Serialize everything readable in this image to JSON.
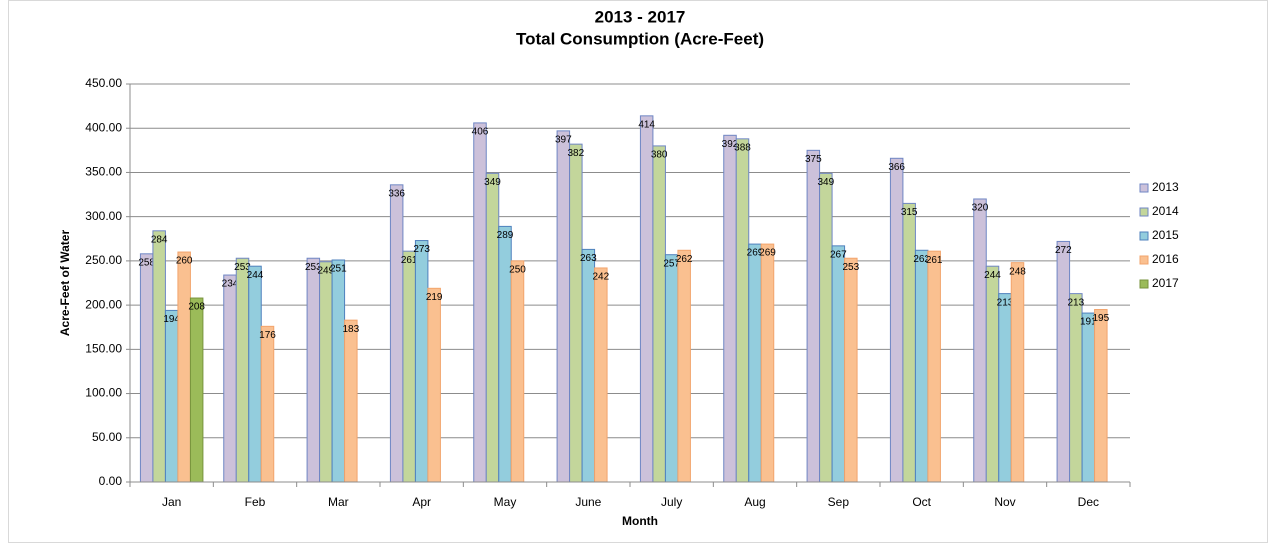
{
  "chart_data": {
    "type": "bar",
    "title": [
      "2013 - 2017",
      "Total Consumption (Acre-Feet)"
    ],
    "x_label": "Month",
    "y_label": "Acre-Feet of Water",
    "categories": [
      "Jan",
      "Feb",
      "Mar",
      "Apr",
      "May",
      "June",
      "July",
      "Aug",
      "Sep",
      "Oct",
      "Nov",
      "Dec"
    ],
    "series": [
      {
        "name": "2013",
        "color": "#ccc1da",
        "border": "#6f86c4",
        "values": [
          258,
          234,
          253,
          336,
          406,
          397,
          414,
          392,
          375,
          366,
          320,
          272
        ]
      },
      {
        "name": "2014",
        "color": "#c3d69b",
        "border": "#6f86c4",
        "values": [
          284,
          253,
          249,
          261,
          349,
          382,
          380,
          388,
          349,
          315,
          244,
          213
        ]
      },
      {
        "name": "2015",
        "color": "#93cddd",
        "border": "#4f81bd",
        "values": [
          194,
          244,
          251,
          273,
          289,
          263,
          257,
          269,
          267,
          262,
          213,
          191
        ]
      },
      {
        "name": "2016",
        "color": "#fac090",
        "border": "#f2a46c",
        "values": [
          260,
          176,
          183,
          219,
          250,
          242,
          262,
          269,
          253,
          261,
          248,
          195
        ]
      },
      {
        "name": "2017",
        "color": "#9bbb59",
        "border": "#77933c",
        "values": [
          208,
          null,
          null,
          null,
          null,
          null,
          null,
          null,
          null,
          null,
          null,
          null
        ]
      }
    ],
    "ylim": [
      0,
      450
    ],
    "yticks": [
      {
        "value": 0,
        "label": "0.00"
      },
      {
        "value": 50,
        "label": "50.00"
      },
      {
        "value": 100,
        "label": "100.00"
      },
      {
        "value": 150,
        "label": "150.00"
      },
      {
        "value": 200,
        "label": "200.00"
      },
      {
        "value": 250,
        "label": "250.00"
      },
      {
        "value": 300,
        "label": "300.00"
      },
      {
        "value": 350,
        "label": "350.00"
      },
      {
        "value": 400,
        "label": "400.00"
      },
      {
        "value": 450,
        "label": "450.00"
      }
    ],
    "grid": true,
    "legend": "right"
  }
}
